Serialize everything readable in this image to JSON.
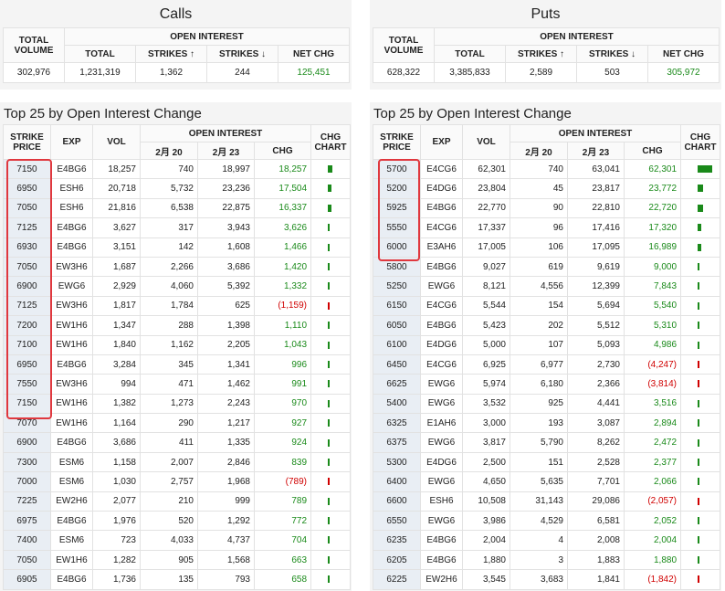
{
  "panels": [
    {
      "summary": {
        "title": "Calls",
        "headers": {
          "total_volume": "TOTAL VOLUME",
          "open_interest": "OPEN INTEREST",
          "total": "TOTAL",
          "strikes_up": "STRIKES ↑",
          "strikes_down": "STRIKES ↓",
          "net_chg": "NET CHG"
        },
        "values": {
          "total_volume": "302,976",
          "total": "1,231,319",
          "strikes_up": "1,362",
          "strikes_down": "244",
          "net_chg": "125,451"
        }
      },
      "top": {
        "title": "Top 25 by Open Interest Change",
        "headers": {
          "strike": "STRIKE PRICE",
          "exp": "EXP",
          "vol": "VOL",
          "open_interest": "OPEN INTEREST",
          "feb20": "2月 20",
          "feb23": "2月 23",
          "chg": "CHG",
          "chg_chart": "CHG CHART"
        },
        "rows": [
          [
            "7150",
            "E4BG6",
            "18,257",
            "740",
            "18,997",
            "18,257"
          ],
          [
            "6950",
            "ESH6",
            "20,718",
            "5,732",
            "23,236",
            "17,504"
          ],
          [
            "7050",
            "ESH6",
            "21,816",
            "6,538",
            "22,875",
            "16,337"
          ],
          [
            "7125",
            "E4BG6",
            "3,627",
            "317",
            "3,943",
            "3,626"
          ],
          [
            "6930",
            "E4BG6",
            "3,151",
            "142",
            "1,608",
            "1,466"
          ],
          [
            "7050",
            "EW3H6",
            "1,687",
            "2,266",
            "3,686",
            "1,420"
          ],
          [
            "6900",
            "EWG6",
            "2,929",
            "4,060",
            "5,392",
            "1,332"
          ],
          [
            "7125",
            "EW3H6",
            "1,817",
            "1,784",
            "625",
            "(1,159)"
          ],
          [
            "7200",
            "EW1H6",
            "1,347",
            "288",
            "1,398",
            "1,110"
          ],
          [
            "7100",
            "EW1H6",
            "1,840",
            "1,162",
            "2,205",
            "1,043"
          ],
          [
            "6950",
            "E4BG6",
            "3,284",
            "345",
            "1,341",
            "996"
          ],
          [
            "7550",
            "EW3H6",
            "994",
            "471",
            "1,462",
            "991"
          ],
          [
            "7150",
            "EW1H6",
            "1,382",
            "1,273",
            "2,243",
            "970"
          ],
          [
            "7070",
            "EW1H6",
            "1,164",
            "290",
            "1,217",
            "927"
          ],
          [
            "6900",
            "E4BG6",
            "3,686",
            "411",
            "1,335",
            "924"
          ],
          [
            "7300",
            "ESM6",
            "1,158",
            "2,007",
            "2,846",
            "839"
          ],
          [
            "7000",
            "ESM6",
            "1,030",
            "2,757",
            "1,968",
            "(789)"
          ],
          [
            "7225",
            "EW2H6",
            "2,077",
            "210",
            "999",
            "789"
          ],
          [
            "6975",
            "E4BG6",
            "1,976",
            "520",
            "1,292",
            "772"
          ],
          [
            "7400",
            "ESM6",
            "723",
            "4,033",
            "4,737",
            "704"
          ],
          [
            "7050",
            "EW1H6",
            "1,282",
            "905",
            "1,568",
            "663"
          ],
          [
            "6905",
            "E4BG6",
            "1,736",
            "135",
            "793",
            "658"
          ]
        ]
      }
    },
    {
      "summary": {
        "title": "Puts",
        "headers": {
          "total_volume": "TOTAL VOLUME",
          "open_interest": "OPEN INTEREST",
          "total": "TOTAL",
          "strikes_up": "STRIKES ↑",
          "strikes_down": "STRIKES ↓",
          "net_chg": "NET CHG"
        },
        "values": {
          "total_volume": "628,322",
          "total": "3,385,833",
          "strikes_up": "2,589",
          "strikes_down": "503",
          "net_chg": "305,972"
        }
      },
      "top": {
        "title": "Top 25 by Open Interest Change",
        "headers": {
          "strike": "STRIKE PRICE",
          "exp": "EXP",
          "vol": "VOL",
          "open_interest": "OPEN INTEREST",
          "feb20": "2月 20",
          "feb23": "2月 23",
          "chg": "CHG",
          "chg_chart": "CHG CHART"
        },
        "rows": [
          [
            "5700",
            "E4CG6",
            "62,301",
            "740",
            "63,041",
            "62,301"
          ],
          [
            "5200",
            "E4DG6",
            "23,804",
            "45",
            "23,817",
            "23,772"
          ],
          [
            "5925",
            "E4BG6",
            "22,770",
            "90",
            "22,810",
            "22,720"
          ],
          [
            "5550",
            "E4CG6",
            "17,337",
            "96",
            "17,416",
            "17,320"
          ],
          [
            "6000",
            "E3AH6",
            "17,005",
            "106",
            "17,095",
            "16,989"
          ],
          [
            "5800",
            "E4BG6",
            "9,027",
            "619",
            "9,619",
            "9,000"
          ],
          [
            "5250",
            "EWG6",
            "8,121",
            "4,556",
            "12,399",
            "7,843"
          ],
          [
            "6150",
            "E4CG6",
            "5,544",
            "154",
            "5,694",
            "5,540"
          ],
          [
            "6050",
            "E4BG6",
            "5,423",
            "202",
            "5,512",
            "5,310"
          ],
          [
            "6100",
            "E4DG6",
            "5,000",
            "107",
            "5,093",
            "4,986"
          ],
          [
            "6450",
            "E4CG6",
            "6,925",
            "6,977",
            "2,730",
            "(4,247)"
          ],
          [
            "6625",
            "EWG6",
            "5,974",
            "6,180",
            "2,366",
            "(3,814)"
          ],
          [
            "5400",
            "EWG6",
            "3,532",
            "925",
            "4,441",
            "3,516"
          ],
          [
            "6325",
            "E1AH6",
            "3,000",
            "193",
            "3,087",
            "2,894"
          ],
          [
            "6375",
            "EWG6",
            "3,817",
            "5,790",
            "8,262",
            "2,472"
          ],
          [
            "5300",
            "E4DG6",
            "2,500",
            "151",
            "2,528",
            "2,377"
          ],
          [
            "6400",
            "EWG6",
            "4,650",
            "5,635",
            "7,701",
            "2,066"
          ],
          [
            "6600",
            "ESH6",
            "10,508",
            "31,143",
            "29,086",
            "(2,057)"
          ],
          [
            "6550",
            "EWG6",
            "3,986",
            "4,529",
            "6,581",
            "2,052"
          ],
          [
            "6235",
            "E4BG6",
            "2,004",
            "4",
            "2,008",
            "2,004"
          ],
          [
            "6205",
            "E4BG6",
            "1,880",
            "3",
            "1,883",
            "1,880"
          ],
          [
            "6225",
            "EW2H6",
            "3,545",
            "3,683",
            "1,841",
            "(1,842)"
          ]
        ]
      }
    }
  ]
}
